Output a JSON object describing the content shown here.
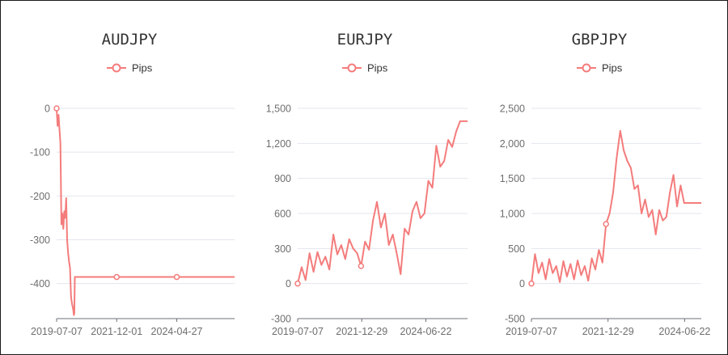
{
  "colors": {
    "series": "#f47c7c",
    "grid": "#e3e6ef",
    "axis": "#6e7079",
    "text": "#333333"
  },
  "chart_data": [
    {
      "type": "line",
      "title": "AUDJPY",
      "legend": "Pips",
      "ylim": [
        -480,
        0
      ],
      "yticks": [
        0,
        -100,
        -200,
        -300,
        -400
      ],
      "ytick_labels": [
        "0",
        "-100",
        "-200",
        "-300",
        "-400"
      ],
      "xlim": [
        "2019-07-07",
        "2026-08-20"
      ],
      "xtick_labels": [
        "2019-07-07",
        "2021-12-01",
        "2024-04-27"
      ],
      "series": [
        {
          "name": "Pips",
          "x": [
            "2019-07-07",
            "2019-07-21",
            "2019-08-04",
            "2019-08-18",
            "2019-09-01",
            "2019-09-15",
            "2019-09-29",
            "2019-10-13",
            "2019-10-27",
            "2019-11-10",
            "2019-11-24",
            "2019-12-08",
            "2019-12-22",
            "2020-01-05",
            "2020-01-19",
            "2020-02-02",
            "2020-02-16",
            "2020-03-01",
            "2020-03-08",
            "2020-03-15",
            "2020-03-22",
            "2020-03-29",
            "2021-12-01",
            "2024-04-27",
            "2026-08-20"
          ],
          "y": [
            0,
            -40,
            -15,
            -50,
            -80,
            -265,
            -240,
            -275,
            -235,
            -250,
            -205,
            -300,
            -330,
            -350,
            -365,
            -430,
            -445,
            -455,
            -462,
            -472,
            -468,
            -385,
            -385,
            -385,
            -385
          ],
          "markers": [
            "2019-07-07",
            "2021-12-01",
            "2024-04-27"
          ]
        }
      ]
    },
    {
      "type": "line",
      "title": "EURJPY",
      "legend": "Pips",
      "ylim": [
        -300,
        1500
      ],
      "yticks": [
        -300,
        0,
        300,
        600,
        900,
        1200,
        1500
      ],
      "ytick_labels": [
        "-300",
        "0",
        "300",
        "600",
        "900",
        "1,200",
        "1,500"
      ],
      "xlim": [
        "2019-07-07",
        "2026-02-01"
      ],
      "xtick_labels": [
        "2019-07-07",
        "2021-12-29",
        "2024-06-22"
      ],
      "series": [
        {
          "name": "Pips",
          "x": [
            "2019-07-07",
            "2019-09-01",
            "2019-10-27",
            "2019-12-22",
            "2020-02-16",
            "2020-04-12",
            "2020-06-07",
            "2020-08-02",
            "2020-09-27",
            "2020-11-22",
            "2021-01-17",
            "2021-03-14",
            "2021-05-09",
            "2021-07-04",
            "2021-08-29",
            "2021-10-24",
            "2021-12-19",
            "2022-02-13",
            "2022-04-10",
            "2022-06-05",
            "2022-07-31",
            "2022-09-25",
            "2022-11-20",
            "2023-01-15",
            "2023-03-12",
            "2023-05-07",
            "2023-07-02",
            "2023-08-27",
            "2023-10-22",
            "2023-12-17",
            "2024-02-11",
            "2024-04-07",
            "2024-06-02",
            "2024-07-28",
            "2024-09-22",
            "2024-11-17",
            "2025-01-12",
            "2025-03-09",
            "2025-05-04",
            "2025-06-29",
            "2025-08-24",
            "2025-10-19",
            "2025-12-14",
            "2026-02-01"
          ],
          "y": [
            0,
            140,
            30,
            260,
            100,
            270,
            160,
            230,
            120,
            420,
            250,
            330,
            210,
            380,
            300,
            260,
            150,
            360,
            290,
            540,
            700,
            480,
            600,
            330,
            420,
            260,
            80,
            470,
            420,
            620,
            700,
            560,
            600,
            880,
            820,
            1180,
            1000,
            1050,
            1230,
            1170,
            1300,
            1390,
            1390,
            1390
          ],
          "markers": [
            "2019-07-07",
            "2021-12-19"
          ]
        }
      ]
    },
    {
      "type": "line",
      "title": "GBPJPY",
      "legend": "Pips",
      "ylim": [
        -500,
        2500
      ],
      "yticks": [
        -500,
        0,
        500,
        1000,
        1500,
        2000,
        2500
      ],
      "ytick_labels": [
        "-500",
        "0",
        "500",
        "1,000",
        "1,500",
        "2,000",
        "2,500"
      ],
      "xlim": [
        "2019-07-07",
        "2025-01-05"
      ],
      "xtick_labels": [
        "2019-07-07",
        "2021-12-29",
        "2024-06-22"
      ],
      "series": [
        {
          "name": "Pips",
          "x": [
            "2019-07-07",
            "2019-08-18",
            "2019-09-29",
            "2019-11-10",
            "2019-12-22",
            "2020-02-02",
            "2020-03-15",
            "2020-04-26",
            "2020-06-07",
            "2020-07-19",
            "2020-08-30",
            "2020-10-11",
            "2020-11-22",
            "2021-01-03",
            "2021-02-14",
            "2021-03-28",
            "2021-05-09",
            "2021-06-20",
            "2021-08-01",
            "2021-09-12",
            "2021-10-24",
            "2021-12-05",
            "2022-01-16",
            "2022-02-27",
            "2022-04-10",
            "2022-05-22",
            "2022-07-03",
            "2022-08-14",
            "2022-09-25",
            "2022-11-06",
            "2022-12-18",
            "2023-01-29",
            "2023-03-12",
            "2023-04-23",
            "2023-06-04",
            "2023-07-16",
            "2023-08-27",
            "2023-10-08",
            "2023-11-19",
            "2023-12-31",
            "2024-02-11",
            "2024-03-24",
            "2024-05-05",
            "2024-06-16",
            "2024-07-28",
            "2024-09-08",
            "2024-10-20",
            "2024-12-01",
            "2025-01-05"
          ],
          "y": [
            0,
            420,
            150,
            300,
            60,
            350,
            150,
            250,
            20,
            320,
            100,
            280,
            60,
            330,
            120,
            250,
            40,
            360,
            200,
            480,
            300,
            850,
            1000,
            1300,
            1800,
            2180,
            1900,
            1750,
            1650,
            1350,
            1400,
            1000,
            1200,
            950,
            1050,
            700,
            1050,
            900,
            950,
            1300,
            1550,
            1100,
            1400,
            1150,
            1150,
            1150,
            1150,
            1150,
            1150
          ],
          "markers": [
            "2019-07-07",
            "2021-12-05"
          ]
        }
      ]
    }
  ]
}
